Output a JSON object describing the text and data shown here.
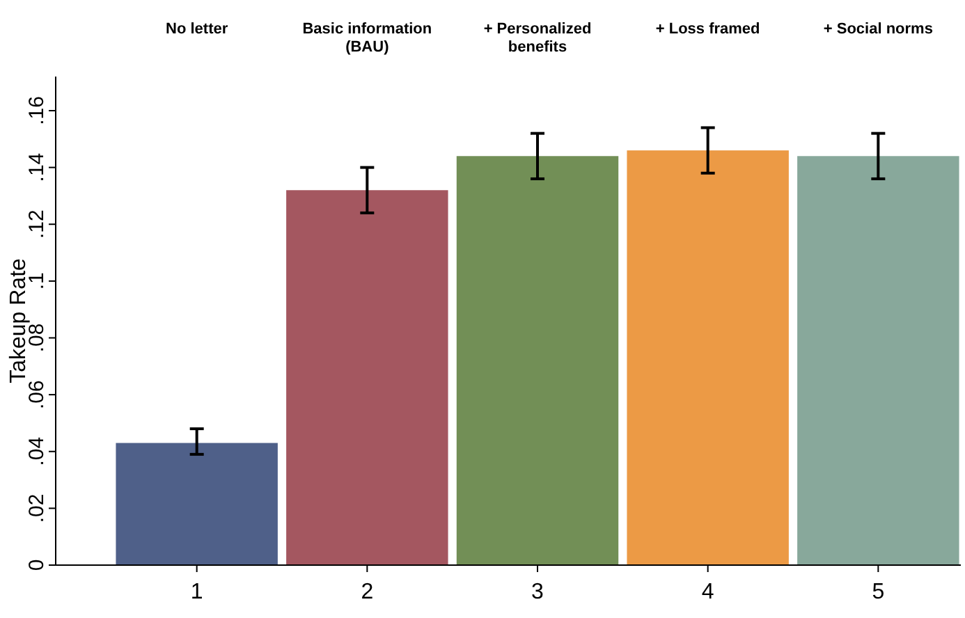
{
  "chart_data": {
    "type": "bar",
    "ylabel": "Takeup Rate",
    "categories": [
      "1",
      "2",
      "3",
      "4",
      "5"
    ],
    "values": [
      0.043,
      0.132,
      0.144,
      0.146,
      0.144
    ],
    "colors": [
      "#4f6089",
      "#a45760",
      "#728f56",
      "#ec9a45",
      "#88a89b"
    ],
    "errors": [
      [
        0.039,
        0.048
      ],
      [
        0.124,
        0.14
      ],
      [
        0.136,
        0.152
      ],
      [
        0.138,
        0.154
      ],
      [
        0.136,
        0.152
      ]
    ],
    "ylim": [
      0,
      0.172
    ],
    "yticks": [
      0,
      {
        "value": 0.02,
        "label": ".02"
      },
      {
        "value": 0.04,
        "label": ".04"
      },
      {
        "value": 0.06,
        "label": ".06"
      },
      {
        "value": 0.08,
        "label": ".08"
      },
      {
        "value": 0.1,
        "label": ".1"
      },
      {
        "value": 0.12,
        "label": ".12"
      },
      {
        "value": 0.14,
        "label": ".14"
      },
      {
        "value": 0.16,
        "label": ".16"
      }
    ],
    "annotations": [
      "No letter",
      "Basic information (BAU)",
      "+ Personalized benefits",
      "+ Loss framed",
      "+ Social norms"
    ]
  }
}
